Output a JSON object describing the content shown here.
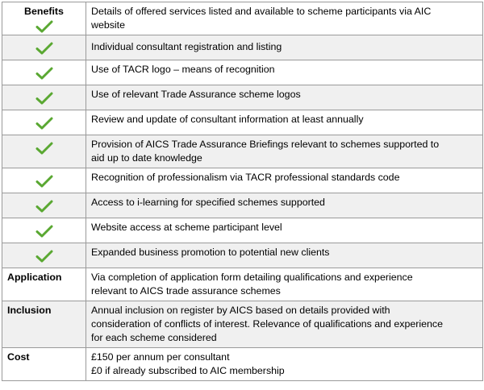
{
  "benefits": {
    "heading": "Benefits",
    "rows": [
      {
        "lines": [
          "Details of offered services listed and available to scheme participants via AIC",
          "website"
        ]
      },
      {
        "lines": [
          "Individual consultant registration and listing"
        ]
      },
      {
        "lines": [
          "Use of TACR logo – means of recognition"
        ]
      },
      {
        "lines": [
          "Use of relevant Trade Assurance scheme logos"
        ]
      },
      {
        "lines": [
          "Review and update of consultant information at least annually"
        ]
      },
      {
        "lines": [
          "Provision of AICS Trade Assurance Briefings relevant to schemes supported to",
          "aid up to date knowledge"
        ]
      },
      {
        "lines": [
          "Recognition of professionalism via TACR professional standards code"
        ]
      },
      {
        "lines": [
          "Access to i-learning for specified schemes supported"
        ]
      },
      {
        "lines": [
          "Website access at scheme participant level"
        ]
      },
      {
        "lines": [
          "Expanded business promotion to potential new clients"
        ]
      }
    ],
    "check_color": "#5aa832"
  },
  "application": {
    "heading": "Application",
    "lines": [
      "Via completion of application form detailing qualifications and experience",
      "relevant to AICS trade assurance schemes"
    ]
  },
  "inclusion": {
    "heading": "Inclusion",
    "lines": [
      "Annual inclusion on register by AICS based on details provided with",
      "consideration of conflicts of interest.  Relevance of qualifications and experience",
      "for each scheme considered"
    ]
  },
  "cost": {
    "heading": "Cost",
    "lines": [
      "£150 per annum per consultant",
      "£0 if already subscribed to AIC membership"
    ]
  }
}
